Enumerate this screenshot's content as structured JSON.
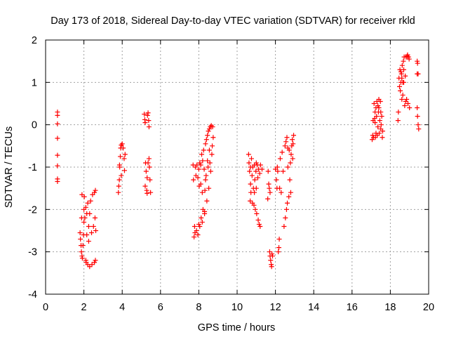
{
  "chart_data": {
    "type": "scatter",
    "title": "Day 173 of 2018, Sidereal Day-to-day VTEC variation (SDTVAR) for receiver rkld",
    "xlabel": "GPS time / hours",
    "ylabel": "SDTVAR / TECUs",
    "xlim": [
      0,
      20
    ],
    "ylim": [
      -4,
      2
    ],
    "xticks": [
      0,
      2,
      4,
      6,
      8,
      10,
      12,
      14,
      16,
      18,
      20
    ],
    "yticks": [
      -4,
      -3,
      -2,
      -1,
      0,
      1,
      2
    ],
    "grid": true,
    "marker": "+",
    "color": "#ff0000",
    "series": [
      {
        "name": "SDTVAR",
        "points": [
          [
            0.62,
            0.3
          ],
          [
            0.62,
            0.22
          ],
          [
            0.62,
            0.02
          ],
          [
            0.62,
            -0.32
          ],
          [
            0.62,
            -0.72
          ],
          [
            0.62,
            -0.97
          ],
          [
            0.62,
            -1.28
          ],
          [
            0.62,
            -1.34
          ],
          [
            1.8,
            -2.55
          ],
          [
            1.82,
            -2.7
          ],
          [
            1.85,
            -2.85
          ],
          [
            1.87,
            -3.0
          ],
          [
            1.9,
            -3.1
          ],
          [
            1.92,
            -3.15
          ],
          [
            1.95,
            -2.85
          ],
          [
            1.98,
            -2.6
          ],
          [
            2.0,
            -2.3
          ],
          [
            2.0,
            -2.0
          ],
          [
            2.02,
            -1.7
          ],
          [
            1.9,
            -1.65
          ],
          [
            2.05,
            -2.2
          ],
          [
            2.1,
            -3.2
          ],
          [
            2.12,
            -3.25
          ],
          [
            2.15,
            -2.6
          ],
          [
            2.2,
            -3.3
          ],
          [
            2.25,
            -2.4
          ],
          [
            2.3,
            -2.1
          ],
          [
            2.3,
            -3.35
          ],
          [
            2.35,
            -1.8
          ],
          [
            2.4,
            -2.55
          ],
          [
            2.42,
            -3.3
          ],
          [
            2.45,
            -1.65
          ],
          [
            2.5,
            -2.4
          ],
          [
            2.55,
            -1.6
          ],
          [
            2.55,
            -3.25
          ],
          [
            2.58,
            -2.2
          ],
          [
            2.6,
            -1.55
          ],
          [
            2.6,
            -3.2
          ],
          [
            2.62,
            -2.5
          ],
          [
            2.1,
            -1.95
          ],
          [
            2.2,
            -1.85
          ],
          [
            2.25,
            -2.75
          ],
          [
            1.88,
            -2.2
          ],
          [
            2.15,
            -2.1
          ],
          [
            3.8,
            -1.6
          ],
          [
            3.82,
            -1.45
          ],
          [
            3.85,
            -1.3
          ],
          [
            3.87,
            -1.0
          ],
          [
            3.9,
            -0.75
          ],
          [
            3.92,
            -0.55
          ],
          [
            3.95,
            -0.48
          ],
          [
            4.0,
            -0.45
          ],
          [
            4.05,
            -0.55
          ],
          [
            4.1,
            -0.8
          ],
          [
            4.15,
            -0.7
          ],
          [
            4.12,
            -1.08
          ],
          [
            3.86,
            -0.95
          ],
          [
            3.95,
            -1.2
          ],
          [
            5.15,
            0.25
          ],
          [
            5.18,
            0.12
          ],
          [
            5.2,
            0.05
          ],
          [
            5.22,
            -0.9
          ],
          [
            5.25,
            -1.1
          ],
          [
            5.28,
            -1.55
          ],
          [
            5.3,
            -1.62
          ],
          [
            5.32,
            0.22
          ],
          [
            5.35,
            0.28
          ],
          [
            5.38,
            0.1
          ],
          [
            5.4,
            -0.8
          ],
          [
            5.42,
            -1.0
          ],
          [
            5.45,
            -1.3
          ],
          [
            5.48,
            -1.6
          ],
          [
            5.2,
            -1.45
          ],
          [
            5.35,
            -0.9
          ],
          [
            5.3,
            -1.25
          ],
          [
            5.4,
            -0.05
          ],
          [
            7.7,
            -0.95
          ],
          [
            7.72,
            -1.3
          ],
          [
            7.75,
            -2.65
          ],
          [
            7.78,
            -2.4
          ],
          [
            7.8,
            -2.55
          ],
          [
            7.85,
            -1.2
          ],
          [
            7.88,
            -2.5
          ],
          [
            7.9,
            -0.95
          ],
          [
            7.95,
            -1.25
          ],
          [
            8.0,
            -2.35
          ],
          [
            8.02,
            -1.45
          ],
          [
            8.05,
            -0.9
          ],
          [
            8.1,
            -1.4
          ],
          [
            8.12,
            -2.2
          ],
          [
            8.15,
            -0.7
          ],
          [
            8.18,
            -1.6
          ],
          [
            8.2,
            -0.85
          ],
          [
            8.22,
            -2.0
          ],
          [
            8.25,
            -0.6
          ],
          [
            8.28,
            -1.05
          ],
          [
            8.3,
            -2.1
          ],
          [
            8.32,
            -1.55
          ],
          [
            8.35,
            -0.45
          ],
          [
            8.38,
            -1.2
          ],
          [
            8.4,
            -0.35
          ],
          [
            8.42,
            -1.8
          ],
          [
            8.45,
            -0.25
          ],
          [
            8.48,
            -1.0
          ],
          [
            8.5,
            -0.15
          ],
          [
            8.52,
            -1.5
          ],
          [
            8.55,
            -0.1
          ],
          [
            8.58,
            -0.9
          ],
          [
            8.6,
            -0.05
          ],
          [
            8.62,
            -1.1
          ],
          [
            8.65,
            -0.02
          ],
          [
            8.68,
            -0.7
          ],
          [
            8.7,
            -0.5
          ],
          [
            8.72,
            -0.05
          ],
          [
            8.75,
            -0.3
          ],
          [
            7.95,
            -2.6
          ],
          [
            8.05,
            -2.4
          ],
          [
            8.18,
            -2.3
          ],
          [
            8.3,
            -2.05
          ],
          [
            8.35,
            -1.3
          ],
          [
            8.1,
            -0.95
          ],
          [
            8.0,
            -1.05
          ],
          [
            7.82,
            -1.0
          ],
          [
            8.45,
            -0.85
          ],
          [
            8.55,
            -0.6
          ],
          [
            10.6,
            -0.7
          ],
          [
            10.62,
            -0.9
          ],
          [
            10.65,
            -1.1
          ],
          [
            10.68,
            -1.8
          ],
          [
            10.7,
            -1.4
          ],
          [
            10.72,
            -1.6
          ],
          [
            10.75,
            -0.8
          ],
          [
            10.78,
            -1.2
          ],
          [
            10.8,
            -1.85
          ],
          [
            10.82,
            -1.0
          ],
          [
            10.85,
            -1.5
          ],
          [
            10.88,
            -1.9
          ],
          [
            10.9,
            -0.95
          ],
          [
            10.92,
            -1.3
          ],
          [
            10.95,
            -2.0
          ],
          [
            10.98,
            -1.1
          ],
          [
            11.0,
            -1.5
          ],
          [
            11.02,
            -2.1
          ],
          [
            11.05,
            -0.95
          ],
          [
            11.08,
            -1.25
          ],
          [
            11.1,
            -2.25
          ],
          [
            11.12,
            -1.05
          ],
          [
            11.15,
            -2.35
          ],
          [
            11.18,
            -1.15
          ],
          [
            11.2,
            -2.4
          ],
          [
            11.22,
            -0.95
          ],
          [
            11.3,
            -1.05
          ],
          [
            11.6,
            -1.75
          ],
          [
            11.7,
            -3.0
          ],
          [
            11.72,
            -3.1
          ],
          [
            11.75,
            -3.2
          ],
          [
            11.78,
            -3.3
          ],
          [
            11.8,
            -3.35
          ],
          [
            11.82,
            -3.05
          ],
          [
            11.62,
            -1.1
          ],
          [
            11.65,
            -1.4
          ],
          [
            11.68,
            -1.5
          ],
          [
            11.72,
            -1.6
          ],
          [
            11.85,
            -3.1
          ],
          [
            12.05,
            -1.3
          ],
          [
            12.08,
            -1.5
          ],
          [
            12.1,
            -1.0
          ],
          [
            12.12,
            -1.1
          ],
          [
            12.15,
            -3.0
          ],
          [
            12.18,
            -2.9
          ],
          [
            12.2,
            -2.7
          ],
          [
            12.22,
            -1.5
          ],
          [
            12.25,
            -0.8
          ],
          [
            12.3,
            -1.6
          ],
          [
            12.35,
            -0.65
          ],
          [
            12.4,
            -1.1
          ],
          [
            12.45,
            -2.4
          ],
          [
            12.5,
            -0.5
          ],
          [
            12.52,
            -2.2
          ],
          [
            12.55,
            -0.4
          ],
          [
            12.58,
            -2.0
          ],
          [
            12.6,
            -0.3
          ],
          [
            12.62,
            -1.85
          ],
          [
            12.65,
            -0.55
          ],
          [
            12.7,
            -1.7
          ],
          [
            12.72,
            -0.6
          ],
          [
            12.75,
            -1.3
          ],
          [
            12.78,
            -0.9
          ],
          [
            12.8,
            -1.6
          ],
          [
            12.82,
            -0.7
          ],
          [
            12.85,
            -0.5
          ],
          [
            12.88,
            -0.35
          ],
          [
            12.9,
            -0.8
          ],
          [
            12.92,
            -0.45
          ],
          [
            12.95,
            -0.25
          ],
          [
            10.7,
            -1.0
          ],
          [
            10.9,
            -1.6
          ],
          [
            11.0,
            -0.9
          ],
          [
            12.0,
            -1.05
          ],
          [
            12.65,
            -1.0
          ],
          [
            17.05,
            -0.35
          ],
          [
            17.08,
            -0.25
          ],
          [
            17.1,
            0.1
          ],
          [
            17.12,
            -0.3
          ],
          [
            17.15,
            0.5
          ],
          [
            17.18,
            0.15
          ],
          [
            17.2,
            0.3
          ],
          [
            17.22,
            -0.3
          ],
          [
            17.25,
            0.4
          ],
          [
            17.28,
            0.2
          ],
          [
            17.3,
            0.55
          ],
          [
            17.32,
            -0.25
          ],
          [
            17.35,
            0.45
          ],
          [
            17.38,
            0.3
          ],
          [
            17.4,
            0.6
          ],
          [
            17.42,
            -0.2
          ],
          [
            17.45,
            0.1
          ],
          [
            17.48,
            0.55
          ],
          [
            17.5,
            -0.1
          ],
          [
            17.52,
            0.0
          ],
          [
            17.55,
            0.2
          ],
          [
            17.58,
            -0.3
          ],
          [
            17.6,
            -0.15
          ],
          [
            17.2,
            0.05
          ],
          [
            17.35,
            -0.05
          ],
          [
            17.25,
            -0.2
          ],
          [
            17.4,
            0.4
          ],
          [
            17.5,
            0.3
          ],
          [
            18.4,
            0.1
          ],
          [
            18.42,
            0.3
          ],
          [
            18.45,
            1.1
          ],
          [
            18.48,
            0.9
          ],
          [
            18.5,
            1.3
          ],
          [
            18.52,
            0.8
          ],
          [
            18.55,
            1.0
          ],
          [
            18.58,
            1.2
          ],
          [
            18.6,
            0.6
          ],
          [
            18.62,
            1.4
          ],
          [
            18.65,
            0.7
          ],
          [
            18.68,
            1.5
          ],
          [
            18.7,
            1.0
          ],
          [
            18.72,
            1.6
          ],
          [
            18.75,
            0.45
          ],
          [
            18.78,
            1.15
          ],
          [
            18.8,
            0.55
          ],
          [
            18.82,
            1.6
          ],
          [
            18.85,
            0.6
          ],
          [
            18.88,
            1.62
          ],
          [
            18.9,
            1.65
          ],
          [
            18.92,
            0.5
          ],
          [
            18.95,
            1.6
          ],
          [
            18.98,
            1.55
          ],
          [
            19.0,
            0.4
          ],
          [
            19.4,
            1.5
          ],
          [
            19.42,
            1.45
          ],
          [
            19.45,
            1.2
          ],
          [
            19.4,
            0.4
          ],
          [
            19.42,
            0.2
          ],
          [
            19.45,
            0.0
          ],
          [
            19.48,
            -0.1
          ],
          [
            19.4,
            1.2
          ],
          [
            18.55,
            1.25
          ],
          [
            18.6,
            1.1
          ],
          [
            18.7,
            1.3
          ],
          [
            18.65,
            1.0
          ]
        ]
      }
    ]
  }
}
